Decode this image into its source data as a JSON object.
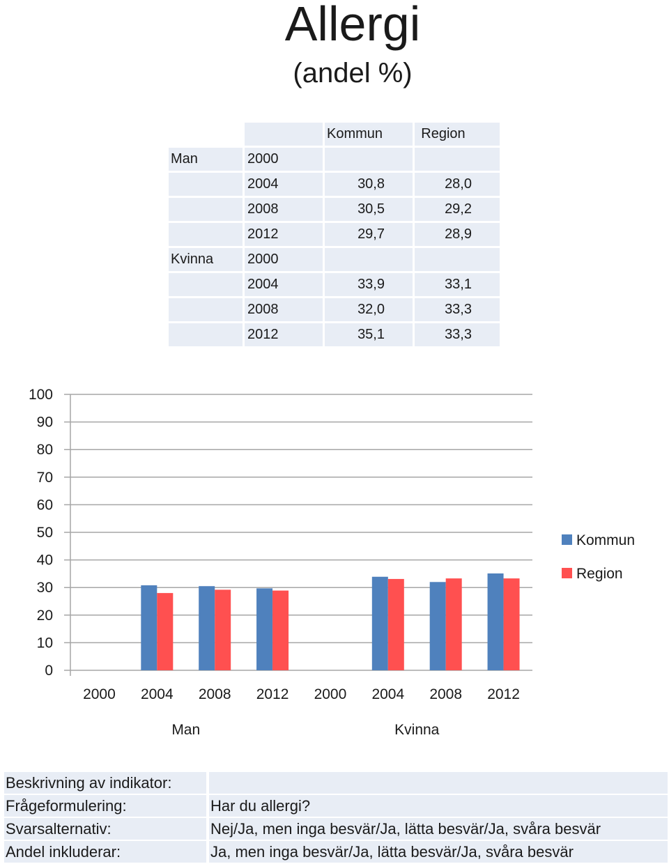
{
  "title": "Allergi",
  "subtitle": "(andel %)",
  "table": {
    "headers": [
      "Kommun",
      "Region"
    ],
    "rows": [
      {
        "group": "Man",
        "year": "2000",
        "kommun": "",
        "region": ""
      },
      {
        "group": "",
        "year": "2004",
        "kommun": "30,8",
        "region": "28,0"
      },
      {
        "group": "",
        "year": "2008",
        "kommun": "30,5",
        "region": "29,2"
      },
      {
        "group": "",
        "year": "2012",
        "kommun": "29,7",
        "region": "28,9"
      },
      {
        "group": "Kvinna",
        "year": "2000",
        "kommun": "",
        "region": ""
      },
      {
        "group": "",
        "year": "2004",
        "kommun": "33,9",
        "region": "33,1"
      },
      {
        "group": "",
        "year": "2008",
        "kommun": "32,0",
        "region": "33,3"
      },
      {
        "group": "",
        "year": "2012",
        "kommun": "35,1",
        "region": "33,3"
      }
    ]
  },
  "chart_data": {
    "type": "bar",
    "groups": [
      "Man",
      "Kvinna"
    ],
    "categories": [
      "2000",
      "2004",
      "2008",
      "2012",
      "2000",
      "2004",
      "2008",
      "2012"
    ],
    "series": [
      {
        "name": "Kommun",
        "color": "#4f81bd",
        "values": [
          null,
          30.8,
          30.5,
          29.7,
          null,
          33.9,
          32.0,
          35.1
        ]
      },
      {
        "name": "Region",
        "color": "#ff5050",
        "values": [
          null,
          28.0,
          29.2,
          28.9,
          null,
          33.1,
          33.3,
          33.3
        ]
      }
    ],
    "ylim": [
      0,
      100
    ],
    "yticks": [
      0,
      10,
      20,
      30,
      40,
      50,
      60,
      70,
      80,
      90,
      100
    ],
    "grid": true,
    "legend": "right"
  },
  "info": [
    {
      "label": "Beskrivning av indikator:",
      "value": ""
    },
    {
      "label": "Frågeformulering:",
      "value": "Har du allergi?"
    },
    {
      "label": "Svarsalternativ:",
      "value": "Nej/Ja, men inga besvär/Ja, lätta besvär/Ja, svåra besvär"
    },
    {
      "label": "Andel inkluderar:",
      "value": "Ja, men inga besvär/Ja, lätta besvär/Ja, svåra besvär"
    }
  ]
}
